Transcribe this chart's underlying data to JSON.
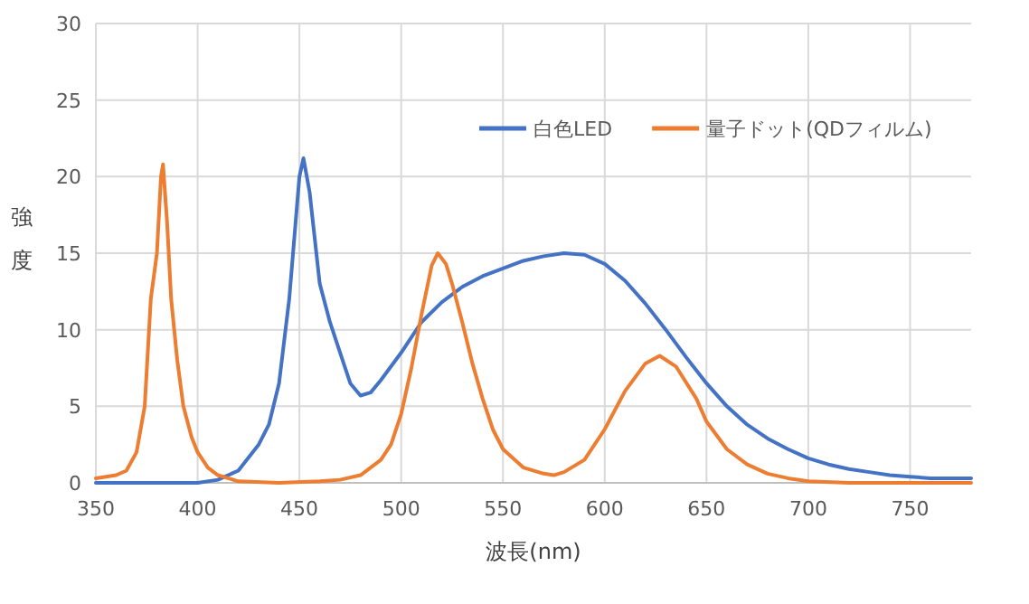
{
  "chart_data": {
    "type": "line",
    "xlabel": "波長(nm)",
    "ylabel": "強度",
    "xlim": [
      350,
      780
    ],
    "xticks": [
      350,
      400,
      450,
      500,
      550,
      600,
      650,
      700,
      750
    ],
    "ylim": [
      0,
      30
    ],
    "yticks": [
      0,
      5,
      10,
      15,
      20,
      25,
      30
    ],
    "grid": true,
    "legend": "top right",
    "marker": "none",
    "line_style": "solid",
    "series": [
      {
        "name": "白色LED",
        "color": "#4472c4",
        "x": [
          350,
          400,
          410,
          420,
          430,
          435,
          440,
          445,
          450,
          452,
          455,
          460,
          465,
          470,
          475,
          480,
          485,
          490,
          500,
          510,
          520,
          530,
          540,
          550,
          560,
          570,
          580,
          590,
          600,
          610,
          620,
          630,
          640,
          650,
          660,
          670,
          680,
          690,
          700,
          710,
          720,
          730,
          740,
          750,
          760,
          780
        ],
        "values": [
          0,
          0,
          0.2,
          0.8,
          2.5,
          3.8,
          6.5,
          12,
          20,
          21.2,
          19,
          13,
          10.5,
          8.5,
          6.5,
          5.7,
          5.9,
          6.7,
          8.5,
          10.5,
          11.8,
          12.8,
          13.5,
          14,
          14.5,
          14.8,
          15,
          14.9,
          14.3,
          13.2,
          11.7,
          10,
          8.2,
          6.5,
          5,
          3.8,
          2.9,
          2.2,
          1.6,
          1.2,
          0.9,
          0.7,
          0.5,
          0.4,
          0.3,
          0.3
        ]
      },
      {
        "name": "量子ドット(QDフィルム)",
        "color": "#ed7d31",
        "x": [
          350,
          360,
          365,
          370,
          374,
          377,
          380,
          382,
          383,
          385,
          387,
          390,
          393,
          397,
          400,
          405,
          410,
          420,
          440,
          460,
          470,
          480,
          490,
          495,
          500,
          505,
          510,
          515,
          518,
          522,
          525,
          530,
          535,
          540,
          545,
          550,
          560,
          570,
          575,
          580,
          590,
          600,
          610,
          620,
          627,
          635,
          645,
          650,
          660,
          670,
          680,
          690,
          700,
          720,
          780
        ],
        "values": [
          0.3,
          0.5,
          0.8,
          2,
          5,
          12,
          15,
          20,
          20.8,
          17,
          12,
          8,
          5,
          3,
          2,
          1,
          0.5,
          0.1,
          0,
          0.1,
          0.2,
          0.5,
          1.5,
          2.5,
          4.5,
          7.5,
          11,
          14.2,
          15,
          14.3,
          13,
          10.5,
          7.8,
          5.5,
          3.5,
          2.2,
          1,
          0.6,
          0.5,
          0.7,
          1.5,
          3.5,
          6,
          7.8,
          8.3,
          7.6,
          5.5,
          4,
          2.2,
          1.2,
          0.6,
          0.3,
          0.1,
          0,
          0
        ]
      }
    ]
  }
}
